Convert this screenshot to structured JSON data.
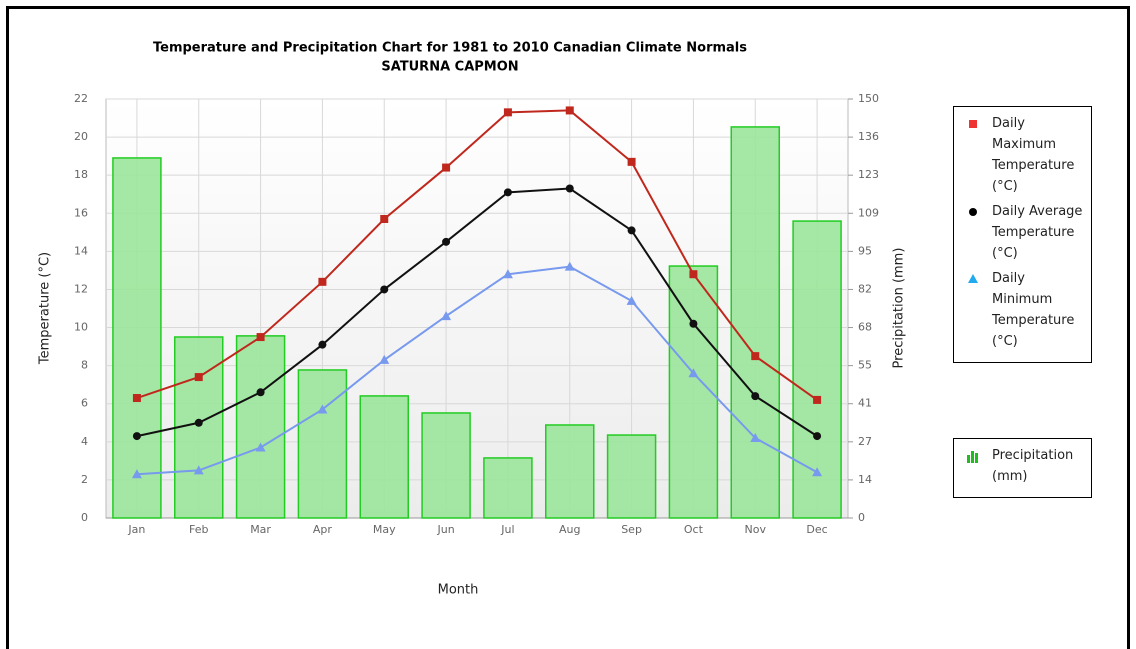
{
  "chart_data": {
    "type": "combo",
    "title": "Temperature and Precipitation Chart for 1981 to 2010 Canadian Climate Normals",
    "subtitle": "SATURNA CAPMON",
    "x_label": "Month",
    "y_label": "Temperature (°C)",
    "y2_label": "Precipitation (mm)",
    "categories": [
      "Jan",
      "Feb",
      "Mar",
      "Apr",
      "May",
      "Jun",
      "Jul",
      "Aug",
      "Sep",
      "Oct",
      "Nov",
      "Dec"
    ],
    "ylim": [
      0,
      22
    ],
    "yticks": [
      0,
      2,
      4,
      6,
      8,
      10,
      12,
      14,
      16,
      18,
      20,
      22
    ],
    "y2lim": [
      0,
      150
    ],
    "y2ticks": [
      0,
      {
        "value": 13.64,
        "label": "14"
      },
      {
        "value": 27.27,
        "label": "27"
      },
      {
        "value": 40.91,
        "label": "41"
      },
      {
        "value": 54.55,
        "label": "55"
      },
      {
        "value": 68.18,
        "label": "68"
      },
      {
        "value": 81.82,
        "label": "82"
      },
      {
        "value": 95.45,
        "label": "95"
      },
      {
        "value": 109.09,
        "label": "109"
      },
      {
        "value": 122.73,
        "label": "123"
      },
      {
        "value": 136.36,
        "label": "136"
      },
      150
    ],
    "grid": true,
    "series": [
      {
        "name": "Precipitation (mm)",
        "type": "bar",
        "axis": "y2",
        "color": "#9be59b",
        "values": [
          128.9,
          64.8,
          65.2,
          53.0,
          43.7,
          37.6,
          21.5,
          33.3,
          29.7,
          90.2,
          140.0,
          106.3
        ]
      },
      {
        "name": "Daily Maximum Temperature (°C)",
        "type": "line",
        "marker": "square",
        "color": "#c0281d",
        "values": [
          6.3,
          7.4,
          9.5,
          12.4,
          15.7,
          18.4,
          21.3,
          21.4,
          18.7,
          12.8,
          8.5,
          6.2
        ]
      },
      {
        "name": "Daily Average Temperature (°C)",
        "type": "line",
        "marker": "circle",
        "color": "#111111",
        "values": [
          4.3,
          5.0,
          6.6,
          9.1,
          12.0,
          14.5,
          17.1,
          17.3,
          15.1,
          10.2,
          6.4,
          4.3
        ]
      },
      {
        "name": "Daily Minimum Temperature (°C)",
        "type": "line",
        "marker": "triangle",
        "color": "#7799ee",
        "values": [
          2.3,
          2.5,
          3.7,
          5.7,
          8.3,
          10.6,
          12.8,
          13.2,
          11.4,
          7.6,
          4.2,
          2.4
        ]
      }
    ]
  }
}
